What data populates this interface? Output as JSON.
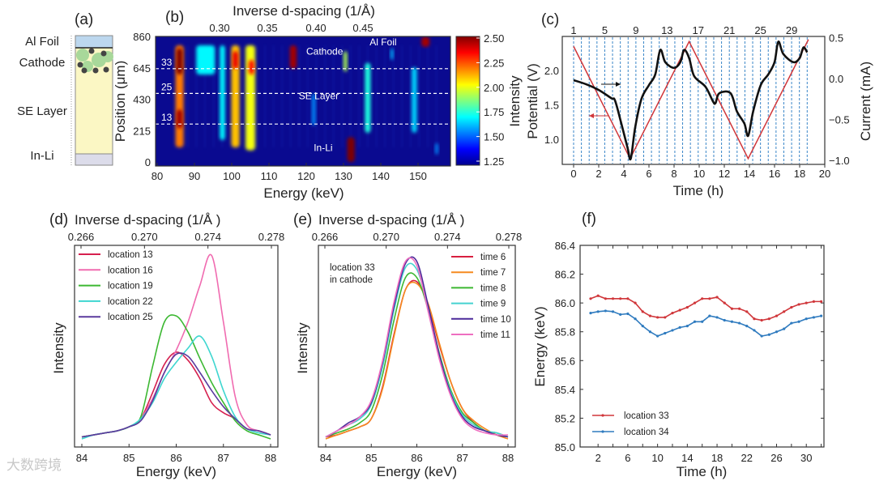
{
  "watermark": "大数跨境",
  "panel_a": {
    "label": "(a)",
    "layers": [
      "Al Foil",
      "Cathode",
      "SE Layer",
      "In-Li"
    ],
    "colors": {
      "al_foil": "#bcd7ee",
      "cathode": "#fbf7c4",
      "se_layer": "#fbf7c4",
      "in_li": "#dcdcea",
      "particle": "#a8d89a",
      "carbon": "#444444"
    }
  },
  "chart_data": [
    {
      "id": "b",
      "type": "heatmap",
      "panel_label": "(b)",
      "title": "Inverse d-spacing (1/Å)",
      "xlabel": "Energy (keV)",
      "ylabel": "Position (μm)",
      "xlim": [
        80,
        158.7
      ],
      "ylim": [
        0,
        860
      ],
      "xticks": [
        80,
        90,
        100,
        110,
        120,
        130,
        140,
        150
      ],
      "yticks": [
        0,
        215,
        430,
        645,
        860
      ],
      "top_ticks": [
        {
          "value": 0.3,
          "energy": 85.5
        },
        {
          "value": 0.35,
          "energy": 98.3
        },
        {
          "value": 0.4,
          "energy": 111.4
        },
        {
          "value": 0.45,
          "energy": 124
        }
      ],
      "top_tick_labels": [
        "0.30",
        "0.35",
        "0.40",
        "0.45"
      ],
      "colorbar": {
        "label": "Intensity",
        "range": [
          1.25,
          2.5
        ],
        "ticks": [
          "2.50",
          "2.25",
          "2.00",
          "1.75",
          "1.50",
          "1.25"
        ]
      },
      "dashed_lines": [
        {
          "label": "33",
          "position": 640
        },
        {
          "label": "25",
          "position": 470
        },
        {
          "label": "13",
          "position": 260
        }
      ],
      "annotations": [
        "Cathode",
        "Al Foil",
        "SE Layer",
        "In-Li"
      ],
      "features": [
        {
          "energy": 86,
          "width": 2.2,
          "pos": [
            100,
            800
          ],
          "intensity": 2.15
        },
        {
          "energy": 86,
          "width": 1.6,
          "pos": [
            600,
            780
          ],
          "intensity": 2.5
        },
        {
          "energy": 86,
          "width": 1.6,
          "pos": [
            230,
            360
          ],
          "intensity": 2.45
        },
        {
          "energy": 93,
          "width": 5,
          "pos": [
            600,
            800
          ],
          "intensity": 1.6
        },
        {
          "energy": 97.5,
          "width": 1.4,
          "pos": [
            150,
            800
          ],
          "intensity": 1.6
        },
        {
          "energy": 101,
          "width": 2.2,
          "pos": [
            100,
            800
          ],
          "intensity": 2.05
        },
        {
          "energy": 101,
          "width": 1.5,
          "pos": [
            640,
            760
          ],
          "intensity": 2.35
        },
        {
          "energy": 105,
          "width": 2.6,
          "pos": [
            80,
            800
          ],
          "intensity": 1.95
        },
        {
          "energy": 105.3,
          "width": 1.5,
          "pos": [
            600,
            700
          ],
          "intensity": 2.3
        },
        {
          "energy": 116.5,
          "width": 1.8,
          "pos": [
            640,
            800
          ],
          "intensity": 2.45
        },
        {
          "energy": 130.5,
          "width": 1.0,
          "pos": [
            620,
            760
          ],
          "intensity": 1.85
        },
        {
          "energy": 132,
          "width": 2.0,
          "pos": [
            0,
            170
          ],
          "intensity": 2.5
        },
        {
          "energy": 122,
          "width": 1.0,
          "pos": [
            250,
            470
          ],
          "intensity": 1.45
        },
        {
          "energy": 136.5,
          "width": 1.5,
          "pos": [
            200,
            680
          ],
          "intensity": 1.65
        },
        {
          "energy": 143,
          "width": 0.8,
          "pos": [
            700,
            780
          ],
          "intensity": 1.5
        },
        {
          "energy": 149,
          "width": 1.4,
          "pos": [
            200,
            650
          ],
          "intensity": 1.55
        },
        {
          "energy": 152,
          "width": 2.2,
          "pos": [
            790,
            860
          ],
          "intensity": 2.45
        },
        {
          "energy": 155,
          "width": 0.8,
          "pos": [
            50,
            130
          ],
          "intensity": 1.45
        }
      ]
    },
    {
      "id": "c",
      "type": "line",
      "panel_label": "(c)",
      "xlabel": "Time (h)",
      "ylabel_left": "Potential (V)",
      "ylabel_right": "Current (mA)",
      "xlim": [
        -0.6,
        20
      ],
      "xticks": [
        0,
        2,
        4,
        6,
        8,
        10,
        12,
        14,
        16,
        18,
        20
      ],
      "yticks_left": [
        1.0,
        1.5,
        2.0
      ],
      "yticks_left_labels": [
        "1.0",
        "1.5",
        "2.0"
      ],
      "yticks_right": [
        0.5,
        0.0,
        -0.5,
        -1.0
      ],
      "yticks_right_labels": [
        "0.5",
        "0.0",
        "−0.5",
        "−1.0"
      ],
      "scan_count": 31,
      "scan_interval_h": 0.62,
      "top_labels": [
        "1",
        "5",
        "9",
        "13",
        "17",
        "21",
        "25",
        "29"
      ],
      "series": [
        {
          "name": "Potential",
          "axis": "left",
          "color": "#d0363a",
          "t": [
            0,
            4.5,
            9.2,
            13.9,
            18.7
          ],
          "v": [
            2.35,
            0.72,
            2.42,
            0.72,
            2.45
          ]
        },
        {
          "name": "Current",
          "axis": "right",
          "color": "#111111",
          "t": [
            0,
            1,
            2,
            3,
            3.3,
            3.8,
            4.3,
            4.55,
            4.9,
            5.4,
            6,
            6.5,
            6.9,
            7.3,
            8,
            8.5,
            8.8,
            9.2,
            9.6,
            10.5,
            11.1,
            11.3,
            11.6,
            12.5,
            13,
            13.6,
            13.9,
            14.3,
            14.9,
            15.5,
            16,
            16.3,
            16.7,
            17.5,
            18,
            18.3,
            18.6
          ],
          "v": [
            -0.02,
            -0.07,
            -0.14,
            -0.24,
            -0.27,
            -0.55,
            -0.85,
            -0.98,
            -0.6,
            -0.25,
            -0.08,
            0.05,
            0.35,
            0.2,
            0.13,
            0.2,
            0.35,
            0.25,
            0.03,
            -0.1,
            -0.28,
            -0.3,
            -0.18,
            -0.18,
            -0.4,
            -0.55,
            -0.7,
            -0.4,
            -0.08,
            0.05,
            0.2,
            0.45,
            0.3,
            0.2,
            0.25,
            0.38,
            0.32
          ]
        }
      ]
    },
    {
      "id": "d",
      "type": "line",
      "panel_label": "(d)",
      "title": "Inverse d-spacing (1/Å )",
      "xlabel": "Energy (keV)",
      "ylabel": "Intensity",
      "xlim": [
        84,
        88
      ],
      "xticks": [
        "84",
        "85",
        "86",
        "87",
        "88"
      ],
      "top_ticks": [
        "0.266",
        "0.270",
        "0.274",
        "0.278"
      ],
      "x": [
        84,
        84.25,
        84.5,
        84.75,
        85,
        85.25,
        85.5,
        85.75,
        86,
        86.25,
        86.5,
        86.75,
        87,
        87.25,
        87.5,
        87.75,
        88
      ],
      "series": [
        {
          "name": "location 13",
          "color": "#d6204f",
          "values": [
            0.05,
            0.06,
            0.07,
            0.08,
            0.1,
            0.14,
            0.27,
            0.41,
            0.47,
            0.43,
            0.34,
            0.22,
            0.17,
            0.14,
            0.09,
            0.08,
            0.06
          ]
        },
        {
          "name": "location 16",
          "color": "#f06bb0",
          "values": [
            0.05,
            0.06,
            0.07,
            0.08,
            0.1,
            0.14,
            0.24,
            0.37,
            0.48,
            0.62,
            0.8,
            0.95,
            0.62,
            0.25,
            0.11,
            0.08,
            0.06
          ]
        },
        {
          "name": "location 19",
          "color": "#3cb832",
          "values": [
            0.05,
            0.06,
            0.07,
            0.08,
            0.1,
            0.15,
            0.4,
            0.62,
            0.65,
            0.57,
            0.44,
            0.32,
            0.22,
            0.13,
            0.08,
            0.06,
            0.04
          ]
        },
        {
          "name": "location 22",
          "color": "#3ed6d0",
          "values": [
            0.04,
            0.06,
            0.07,
            0.08,
            0.1,
            0.14,
            0.22,
            0.34,
            0.42,
            0.49,
            0.55,
            0.45,
            0.28,
            0.15,
            0.09,
            0.07,
            0.06
          ]
        },
        {
          "name": "location 25",
          "color": "#5b3a9e",
          "values": [
            0.05,
            0.06,
            0.07,
            0.08,
            0.1,
            0.13,
            0.23,
            0.37,
            0.46,
            0.45,
            0.37,
            0.28,
            0.2,
            0.14,
            0.09,
            0.08,
            0.06
          ]
        }
      ]
    },
    {
      "id": "e",
      "type": "line",
      "panel_label": "(e)",
      "title": "Inverse d-spacing (1/Å )",
      "xlabel": "Energy (keV)",
      "ylabel": "Intensity",
      "annotation": [
        "location 33",
        "in cathode"
      ],
      "xlim": [
        84,
        88
      ],
      "xticks": [
        "84",
        "85",
        "86",
        "87",
        "88"
      ],
      "top_ticks": [
        "0.266",
        "0.270",
        "0.274",
        "0.278"
      ],
      "x": [
        84,
        84.25,
        84.5,
        84.75,
        85,
        85.25,
        85.5,
        85.75,
        86,
        86.25,
        86.5,
        86.75,
        87,
        87.25,
        87.5,
        87.75,
        88
      ],
      "series": [
        {
          "name": "time 6",
          "color": "#d81f3f",
          "values": [
            0.05,
            0.06,
            0.08,
            0.1,
            0.14,
            0.3,
            0.56,
            0.78,
            0.82,
            0.7,
            0.5,
            0.32,
            0.19,
            0.12,
            0.08,
            0.06,
            0.05
          ]
        },
        {
          "name": "time 7",
          "color": "#f58a1f",
          "values": [
            0.04,
            0.06,
            0.08,
            0.1,
            0.14,
            0.29,
            0.55,
            0.78,
            0.81,
            0.71,
            0.51,
            0.32,
            0.19,
            0.13,
            0.09,
            0.06,
            0.04
          ]
        },
        {
          "name": "time 8",
          "color": "#3cb832",
          "values": [
            0.05,
            0.07,
            0.09,
            0.12,
            0.18,
            0.36,
            0.63,
            0.84,
            0.84,
            0.68,
            0.46,
            0.28,
            0.17,
            0.12,
            0.08,
            0.07,
            0.05
          ]
        },
        {
          "name": "time 9",
          "color": "#45d2d0",
          "values": [
            0.05,
            0.08,
            0.11,
            0.14,
            0.21,
            0.4,
            0.68,
            0.89,
            0.88,
            0.69,
            0.45,
            0.27,
            0.16,
            0.11,
            0.08,
            0.07,
            0.05
          ]
        },
        {
          "name": "time 10",
          "color": "#4b2a9a",
          "values": [
            0.05,
            0.08,
            0.12,
            0.15,
            0.22,
            0.42,
            0.7,
            0.91,
            0.92,
            0.7,
            0.45,
            0.26,
            0.15,
            0.1,
            0.08,
            0.06,
            0.05
          ]
        },
        {
          "name": "time 11",
          "color": "#ee6fc0",
          "values": [
            0.05,
            0.08,
            0.11,
            0.15,
            0.23,
            0.43,
            0.72,
            0.92,
            0.9,
            0.67,
            0.43,
            0.25,
            0.14,
            0.09,
            0.07,
            0.06,
            0.06
          ]
        }
      ]
    },
    {
      "id": "f",
      "type": "line",
      "panel_label": "(f)",
      "xlabel": "Time (h)",
      "ylabel": "Energy (keV)",
      "xlim": [
        -1.3,
        35
      ],
      "ylim": [
        85.0,
        86.4
      ],
      "xticks": [
        "2",
        "6",
        "10",
        "14",
        "18",
        "22",
        "26",
        "30"
      ],
      "yticks": [
        "85.0",
        "85.2",
        "85.4",
        "85.6",
        "85.8",
        "86.0",
        "86.2",
        "86.4"
      ],
      "x": [
        1,
        2,
        3,
        4,
        5,
        6,
        7,
        8,
        9,
        10,
        11,
        12,
        13,
        14,
        15,
        16,
        17,
        18,
        19,
        20,
        21,
        22,
        23,
        24,
        25,
        26,
        27,
        28,
        29,
        30,
        31,
        32
      ],
      "series": [
        {
          "name": "location 33",
          "color": "#d0363a",
          "values": [
            86.03,
            86.05,
            86.03,
            86.03,
            86.03,
            86.03,
            86.0,
            85.94,
            85.91,
            85.9,
            85.9,
            85.93,
            85.95,
            85.97,
            86.0,
            86.03,
            86.03,
            86.04,
            86.0,
            85.96,
            85.96,
            85.94,
            85.89,
            85.88,
            85.89,
            85.91,
            85.94,
            85.97,
            85.99,
            86.0,
            86.01,
            86.01
          ]
        },
        {
          "name": "location 34",
          "color": "#2f7bbf",
          "values": [
            85.93,
            85.94,
            85.945,
            85.94,
            85.92,
            85.925,
            85.89,
            85.84,
            85.8,
            85.77,
            85.79,
            85.81,
            85.83,
            85.84,
            85.87,
            85.87,
            85.91,
            85.9,
            85.88,
            85.87,
            85.86,
            85.84,
            85.81,
            85.77,
            85.78,
            85.8,
            85.82,
            85.86,
            85.87,
            85.89,
            85.9,
            85.91
          ]
        }
      ]
    }
  ]
}
